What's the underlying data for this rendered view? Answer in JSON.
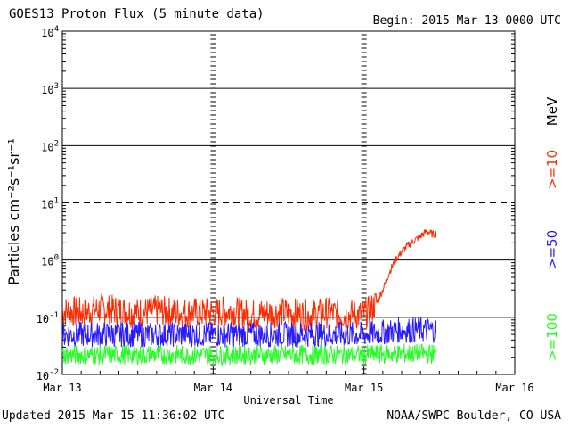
{
  "header": {
    "title": "GOES13 Proton Flux (5 minute data)",
    "begin": "Begin: 2015 Mar 13 0000 UTC"
  },
  "footer": {
    "updated": "Updated 2015 Mar 15 11:36:02 UTC",
    "credit": "NOAA/SWPC Boulder, CO USA"
  },
  "chart_data": {
    "type": "line",
    "title": "GOES13 Proton Flux (5 minute data)",
    "xlabel": "Universal Time",
    "ylabel": "Particles cm⁻²s⁻¹sr⁻¹",
    "yscale": "log",
    "ylim": [
      0.01,
      10000
    ],
    "xlim": [
      "2015-03-13 00:00",
      "2015-03-16 00:00"
    ],
    "x_ticks": [
      "Mar 13",
      "Mar 14",
      "Mar 15",
      "Mar 16"
    ],
    "y_ticks": [
      {
        "base": "10",
        "exp": "-2"
      },
      {
        "base": "10",
        "exp": "-1"
      },
      {
        "base": "10",
        "exp": "0"
      },
      {
        "base": "10",
        "exp": "1"
      },
      {
        "base": "10",
        "exp": "2"
      },
      {
        "base": "10",
        "exp": "3"
      },
      {
        "base": "10",
        "exp": "4"
      }
    ],
    "threshold_line": {
      "value": 10,
      "style": "dashed"
    },
    "unit_label": "MeV",
    "series": [
      {
        "name": ">=10",
        "color": "#ff2a00",
        "x_hours": [
          0,
          3,
          6,
          9,
          12,
          15,
          18,
          21,
          24,
          27,
          30,
          33,
          36,
          39,
          42,
          45,
          48,
          49,
          50,
          51,
          52,
          53,
          54,
          55,
          56,
          57,
          58,
          59,
          59.5
        ],
        "y": [
          0.13,
          0.12,
          0.14,
          0.13,
          0.12,
          0.13,
          0.12,
          0.12,
          0.12,
          0.13,
          0.11,
          0.12,
          0.12,
          0.11,
          0.12,
          0.11,
          0.11,
          0.13,
          0.18,
          0.3,
          0.6,
          1.0,
          1.4,
          1.8,
          2.2,
          2.6,
          3.2,
          2.8,
          3.0
        ]
      },
      {
        "name": ">=50",
        "color": "#2a1aff",
        "x_hours": [
          0,
          6,
          12,
          18,
          24,
          30,
          36,
          42,
          48,
          54,
          59.5
        ],
        "y": [
          0.05,
          0.05,
          0.05,
          0.05,
          0.05,
          0.05,
          0.05,
          0.05,
          0.05,
          0.06,
          0.06
        ]
      },
      {
        "name": ">=100",
        "color": "#22ff22",
        "x_hours": [
          0,
          6,
          12,
          18,
          24,
          30,
          36,
          42,
          48,
          54,
          59.5
        ],
        "y": [
          0.022,
          0.022,
          0.022,
          0.022,
          0.022,
          0.022,
          0.022,
          0.022,
          0.022,
          0.023,
          0.023
        ]
      }
    ]
  }
}
